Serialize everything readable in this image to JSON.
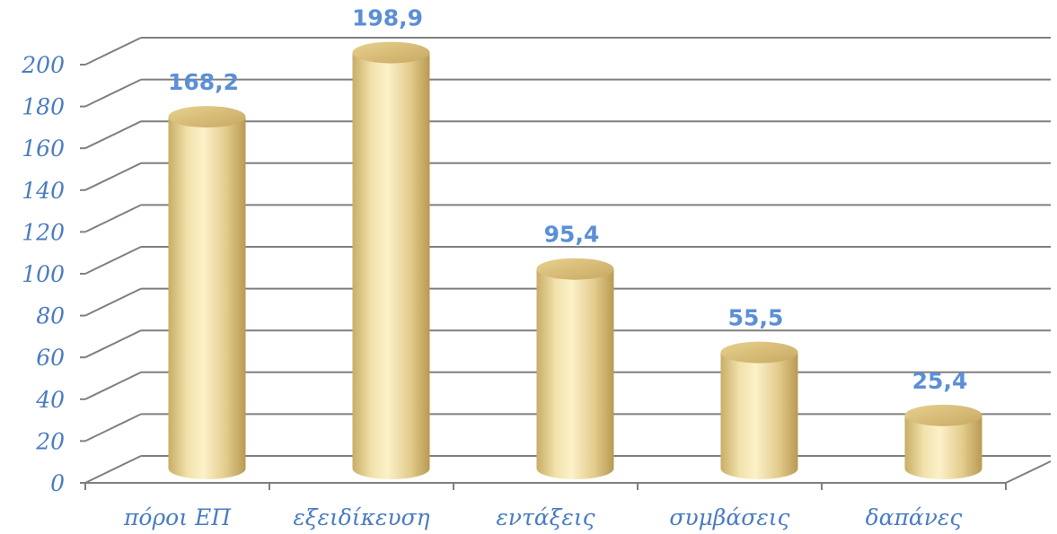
{
  "chart_data": {
    "type": "bar",
    "style": "3d-cylinder",
    "categories": [
      "πόροι ΕΠ",
      "εξειδίκευση",
      "εντάξεις",
      "συμβάσεις",
      "δαπάνες"
    ],
    "values": [
      168.2,
      198.9,
      95.4,
      55.5,
      25.4
    ],
    "data_labels": [
      "168,2",
      "198,9",
      "95,4",
      "55,5",
      "25,4"
    ],
    "y_ticks": [
      "0",
      "20",
      "40",
      "60",
      "80",
      "100",
      "120",
      "140",
      "160",
      "180",
      "200"
    ],
    "ylim": [
      0,
      200
    ],
    "grid": true,
    "legend": "none",
    "colors": {
      "bar_light": "#fbf1c9",
      "bar_mid": "#ead49a",
      "bar_dark": "#b89a52",
      "bar_top": "#dcc07a",
      "grid": "#7f7f7f",
      "text": "#4a7cc0",
      "label": "#5b8fd6"
    }
  }
}
